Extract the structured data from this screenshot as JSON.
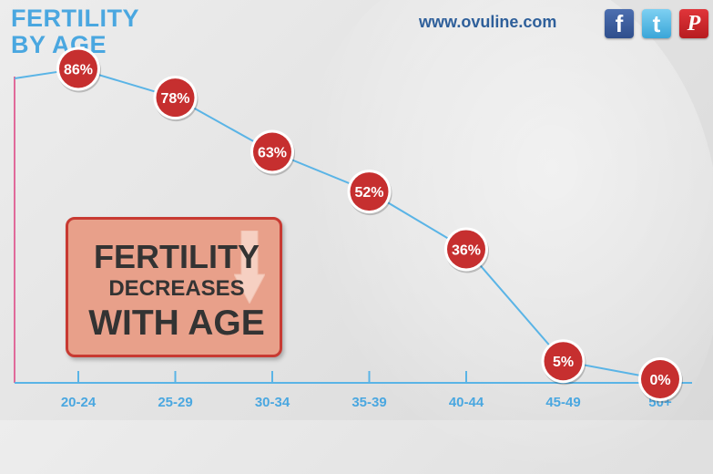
{
  "header": {
    "title_line1": "FERTILITY",
    "title_line2": "BY AGE",
    "site": "www.ovuline.com"
  },
  "social": [
    {
      "icon": "facebook-icon",
      "glyph": "f"
    },
    {
      "icon": "twitter-icon",
      "glyph": "t"
    },
    {
      "icon": "pinterest-icon",
      "glyph": "P"
    }
  ],
  "callout": {
    "line1": "FERTILITY",
    "line2": "DECREASES",
    "line3": "WITH AGE"
  },
  "colors": {
    "title": "#4aa7e0",
    "line": "#5ab4e6",
    "axis_x": "#5ab4e6",
    "axis_y": "#e06a9a",
    "marker": "#c62f2f",
    "tick_label": "#4aa7e0"
  },
  "chart_data": {
    "type": "line",
    "title": "FERTILITY BY AGE",
    "categories": [
      "20-24",
      "25-29",
      "30-34",
      "35-39",
      "40-44",
      "45-49",
      "50+"
    ],
    "values": [
      86,
      78,
      63,
      52,
      36,
      5,
      0
    ],
    "data_labels": [
      "86%",
      "78%",
      "63%",
      "52%",
      "36%",
      "5%",
      "0%"
    ],
    "xlabel": "",
    "ylabel": "",
    "ylim": [
      0,
      100
    ],
    "grid": false,
    "legend": "none"
  }
}
